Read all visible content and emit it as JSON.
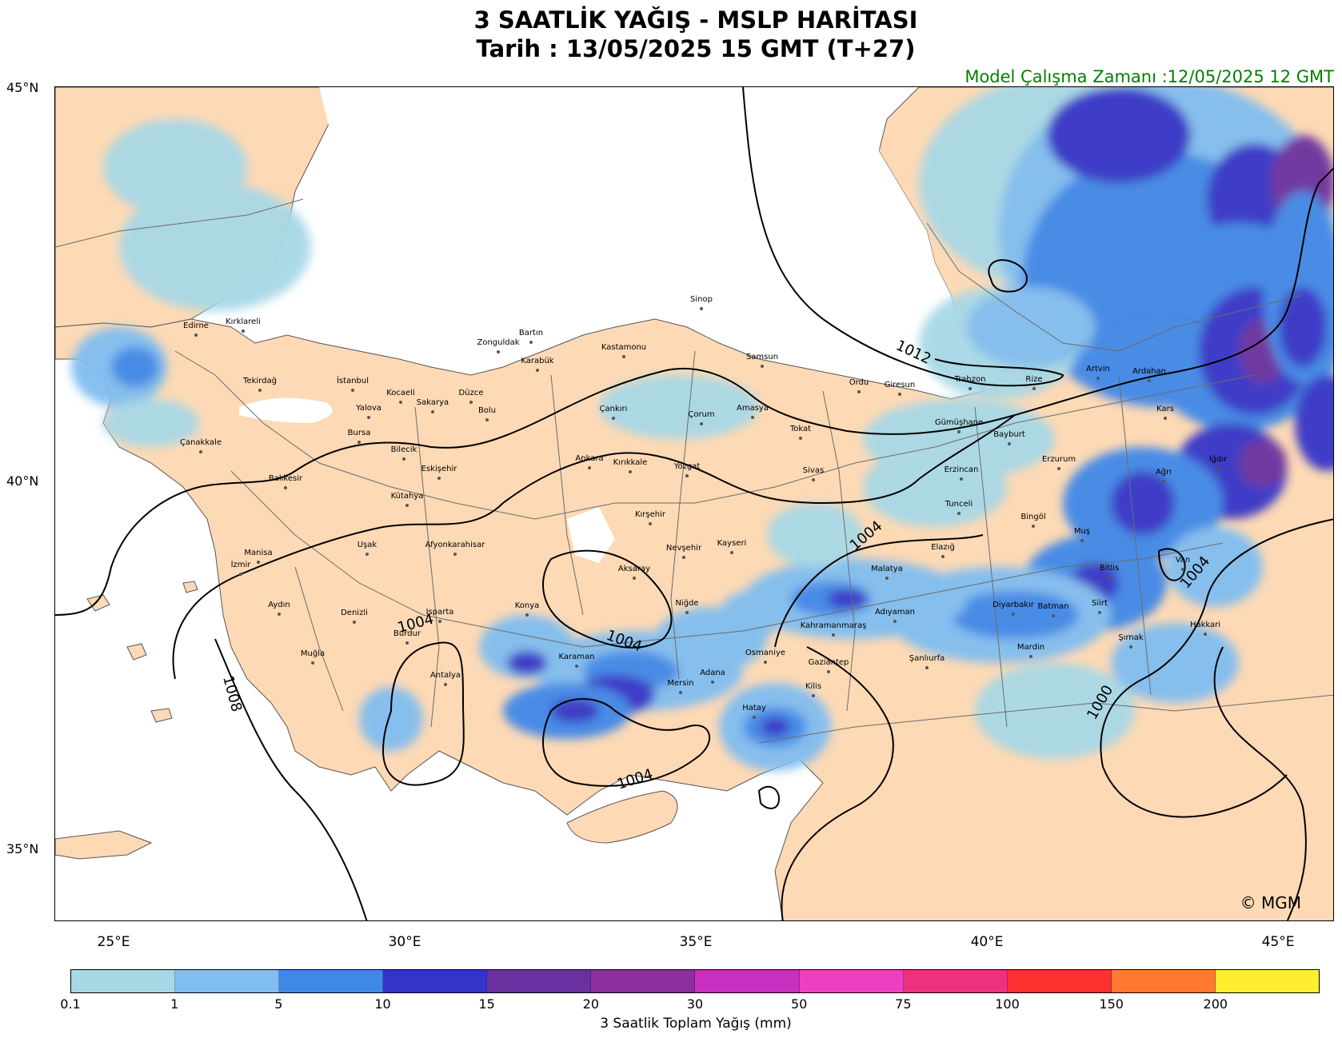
{
  "header": {
    "title_line1": "3 SAATLİK YAĞIŞ - MSLP HARİTASI",
    "title_line2": "Tarih : 13/05/2025  15 GMT (T+27)",
    "model_run": "Model Çalışma Zamanı :12/05/2025  12 GMT"
  },
  "map": {
    "lat_labels": [
      "45°N",
      "40°N",
      "35°N"
    ],
    "lon_labels": [
      "25°E",
      "30°E",
      "35°E",
      "40°E",
      "45°E"
    ],
    "copyright": "© MGM",
    "colors": {
      "land": "#fdd9b5",
      "sea": "#ffffff",
      "border": "#555555",
      "isobar": "#000000"
    },
    "isobar_labels": [
      "1012",
      "1004",
      "1004",
      "1004",
      "1004",
      "1004",
      "1008",
      "1000"
    ],
    "cities": [
      {
        "name": "Sinop"
      },
      {
        "name": "Edirne"
      },
      {
        "name": "Kırklareli"
      },
      {
        "name": "Bartın"
      },
      {
        "name": "Zonguldak"
      },
      {
        "name": "Kastamonu"
      },
      {
        "name": "Karabük"
      },
      {
        "name": "Samsun"
      },
      {
        "name": "Ordu"
      },
      {
        "name": "Giresun"
      },
      {
        "name": "Trabzon"
      },
      {
        "name": "Rize"
      },
      {
        "name": "Artvin"
      },
      {
        "name": "Ardahan"
      },
      {
        "name": "Tekirdağ"
      },
      {
        "name": "İstanbul"
      },
      {
        "name": "Kocaeli"
      },
      {
        "name": "Düzce"
      },
      {
        "name": "Sakarya"
      },
      {
        "name": "Yalova"
      },
      {
        "name": "Bolu"
      },
      {
        "name": "Çankırı"
      },
      {
        "name": "Çorum"
      },
      {
        "name": "Amasya"
      },
      {
        "name": "Tokat"
      },
      {
        "name": "Gümüşhane"
      },
      {
        "name": "Bayburt"
      },
      {
        "name": "Kars"
      },
      {
        "name": "Bursa"
      },
      {
        "name": "Bilecik"
      },
      {
        "name": "Çanakkale"
      },
      {
        "name": "Ankara"
      },
      {
        "name": "Kırıkkale"
      },
      {
        "name": "Eskişehir"
      },
      {
        "name": "Yozgat"
      },
      {
        "name": "Sivas"
      },
      {
        "name": "Erzincan"
      },
      {
        "name": "Erzurum"
      },
      {
        "name": "Ağrı"
      },
      {
        "name": "Iğdır"
      },
      {
        "name": "Balıkesir"
      },
      {
        "name": "Kütahya"
      },
      {
        "name": "Kırşehir"
      },
      {
        "name": "Tunceli"
      },
      {
        "name": "Bingöl"
      },
      {
        "name": "Muş"
      },
      {
        "name": "Manisa"
      },
      {
        "name": "Uşak"
      },
      {
        "name": "Afyonkarahisar"
      },
      {
        "name": "Nevşehir"
      },
      {
        "name": "Kayseri"
      },
      {
        "name": "Elazığ"
      },
      {
        "name": "İzmir"
      },
      {
        "name": "Aksaray"
      },
      {
        "name": "Malatya"
      },
      {
        "name": "Bitlis"
      },
      {
        "name": "Van"
      },
      {
        "name": "Aydın"
      },
      {
        "name": "Denizli"
      },
      {
        "name": "Isparta"
      },
      {
        "name": "Konya"
      },
      {
        "name": "Niğde"
      },
      {
        "name": "Adıyaman"
      },
      {
        "name": "Diyarbakır"
      },
      {
        "name": "Batman"
      },
      {
        "name": "Siirt"
      },
      {
        "name": "Burdur"
      },
      {
        "name": "Kahramanmaraş"
      },
      {
        "name": "Hakkari"
      },
      {
        "name": "Şırnak"
      },
      {
        "name": "Muğla"
      },
      {
        "name": "Karaman"
      },
      {
        "name": "Osmaniye"
      },
      {
        "name": "Gaziantep"
      },
      {
        "name": "Şanlıurfa"
      },
      {
        "name": "Mardin"
      },
      {
        "name": "Antalya"
      },
      {
        "name": "Adana"
      },
      {
        "name": "Mersin"
      },
      {
        "name": "Kilis"
      },
      {
        "name": "Hatay"
      }
    ]
  },
  "legend": {
    "label": "3 Saatlik Toplam Yağış (mm)",
    "ticks": [
      "0.1",
      "1",
      "5",
      "10",
      "15",
      "20",
      "30",
      "50",
      "75",
      "100",
      "150",
      "200"
    ],
    "colors": [
      "#a7d8e6",
      "#80bdf0",
      "#4088e8",
      "#3434c8",
      "#6a30a0",
      "#8b2e9e",
      "#c830c0",
      "#ec40c0",
      "#ee3080",
      "#ff3030",
      "#ff7a30",
      "#ffee30"
    ]
  }
}
